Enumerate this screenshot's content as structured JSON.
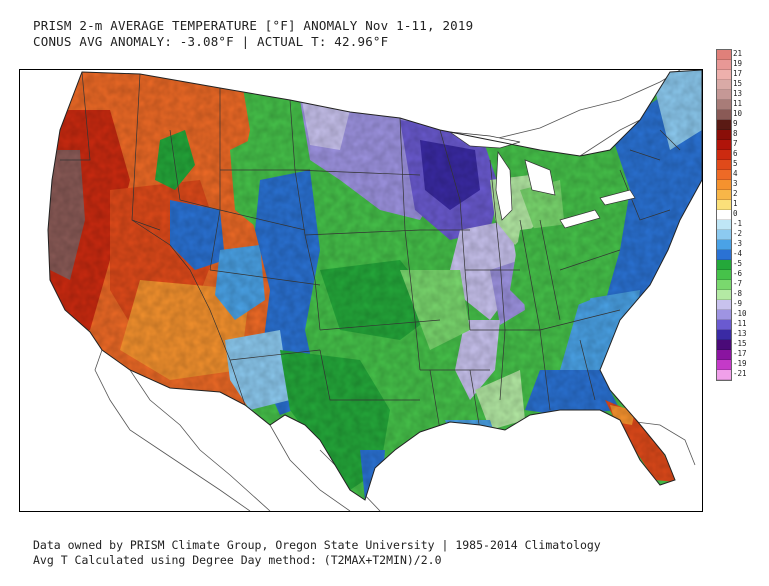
{
  "title": {
    "line1": "PRISM 2-m AVERAGE TEMPERATURE [°F] ANOMALY Nov 1-11, 2019",
    "line2": "CONUS AVG ANOMALY: -3.08°F | ACTUAL T: 42.96°F"
  },
  "footer": {
    "line1": "Data owned by PRISM Climate Group, Oregon State University | 1985-2014 Climatology",
    "line2": "Avg T Calculated using Degree Day method: (T2MAX+T2MIN)/2.0"
  },
  "colorbar": [
    {
      "label": "21",
      "color": "#e0807a"
    },
    {
      "label": "19",
      "color": "#e89896"
    },
    {
      "label": "17",
      "color": "#eeb0ac"
    },
    {
      "label": "15",
      "color": "#d9aaa6"
    },
    {
      "label": "13",
      "color": "#c59896"
    },
    {
      "label": "11",
      "color": "#a87c78"
    },
    {
      "label": "10",
      "color": "#8a5a56"
    },
    {
      "label": "9",
      "color": "#5a1a14"
    },
    {
      "label": "8",
      "color": "#8a0e08"
    },
    {
      "label": "7",
      "color": "#b0140a"
    },
    {
      "label": "6",
      "color": "#cc2a10"
    },
    {
      "label": "5",
      "color": "#e04a1a"
    },
    {
      "label": "4",
      "color": "#ee6a26"
    },
    {
      "label": "3",
      "color": "#f5922e"
    },
    {
      "label": "2",
      "color": "#f8b648"
    },
    {
      "label": "1",
      "color": "#fbe07a"
    },
    {
      "label": "0",
      "color": "#ffffff"
    },
    {
      "label": "-1",
      "color": "#bfe6f6"
    },
    {
      "label": "-2",
      "color": "#8ccaf0"
    },
    {
      "label": "-3",
      "color": "#4aa2e6"
    },
    {
      "label": "-4",
      "color": "#2a72d4"
    },
    {
      "label": "-5",
      "color": "#24a83a"
    },
    {
      "label": "-6",
      "color": "#46c24a"
    },
    {
      "label": "-7",
      "color": "#7ad86e"
    },
    {
      "label": "-8",
      "color": "#b4eaa4"
    },
    {
      "label": "-9",
      "color": "#c8c2ee"
    },
    {
      "label": "-10",
      "color": "#9e94e2"
    },
    {
      "label": "-11",
      "color": "#6a5ad0"
    },
    {
      "label": "-13",
      "color": "#3a2aa4"
    },
    {
      "label": "-15",
      "color": "#4a0a78"
    },
    {
      "label": "-17",
      "color": "#8a14a0"
    },
    {
      "label": "-19",
      "color": "#c43ac8"
    },
    {
      "label": "-21",
      "color": "#f0a0ea"
    }
  ]
}
